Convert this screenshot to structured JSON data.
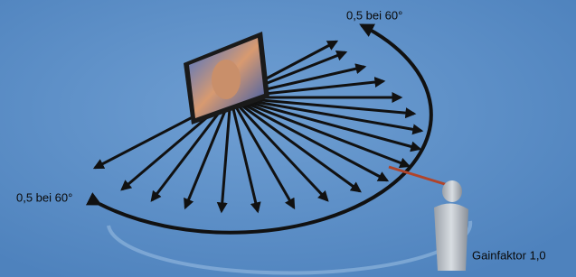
{
  "labels": {
    "top_right": "0,5 bei 60°",
    "left": "0,5 bei 60°",
    "viewer": "Gainfaktor 1,0"
  }
}
